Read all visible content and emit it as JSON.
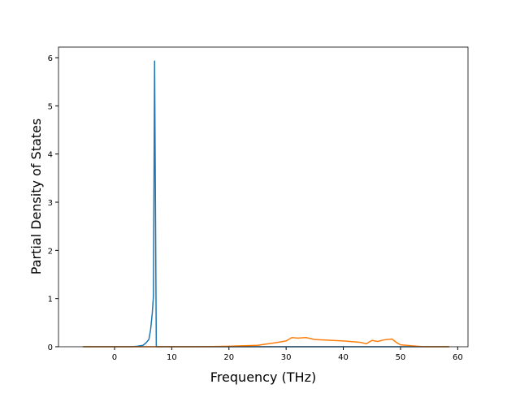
{
  "chart_data": {
    "type": "line",
    "x_label": "Frequency (THz)",
    "y_label": "Partial Density of States",
    "xlim": [
      -9.8,
      61.8
    ],
    "ylim": [
      0,
      6.22
    ],
    "xticks": [
      0,
      10,
      20,
      30,
      40,
      50,
      60
    ],
    "yticks": [
      0,
      1,
      2,
      3,
      4,
      5,
      6
    ],
    "series": [
      {
        "color": "#1f77b4",
        "x": [
          -5.5,
          3,
          4,
          5,
          5.5,
          6,
          6.3,
          6.6,
          6.8,
          7.0,
          7.15,
          7.3,
          10,
          58.5
        ],
        "values": [
          0,
          0,
          0.01,
          0.03,
          0.08,
          0.15,
          0.35,
          0.7,
          1.05,
          5.93,
          3.0,
          0,
          0,
          0
        ]
      },
      {
        "color": "#ff7f0e",
        "x": [
          -5.5,
          15,
          20,
          25,
          28,
          30,
          31,
          32,
          33.5,
          35,
          40,
          43,
          44,
          45,
          46,
          47,
          48.5,
          49.5,
          50,
          52,
          54,
          58.5
        ],
        "values": [
          0,
          0,
          0.01,
          0.03,
          0.08,
          0.12,
          0.19,
          0.18,
          0.19,
          0.15,
          0.12,
          0.09,
          0.06,
          0.13,
          0.11,
          0.14,
          0.16,
          0.07,
          0.04,
          0.02,
          0,
          0
        ]
      }
    ]
  }
}
